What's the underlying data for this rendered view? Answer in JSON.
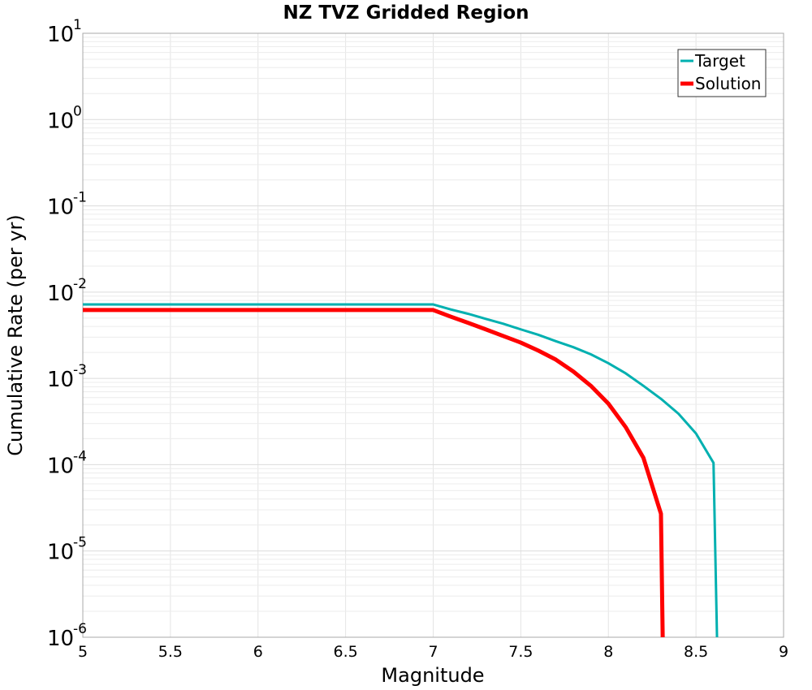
{
  "chart_data": {
    "type": "line",
    "title": "NZ TVZ Gridded Region",
    "xlabel": "Magnitude",
    "ylabel": "Cumulative Rate (per yr)",
    "xlim": [
      5,
      9
    ],
    "ylim": [
      1e-06,
      10
    ],
    "y_scale": "log",
    "grid": true,
    "legend_position": "top-right",
    "x_ticks": [
      "5",
      "5.5",
      "6",
      "6.5",
      "7",
      "7.5",
      "8",
      "8.5",
      "9"
    ],
    "y_ticks": [
      {
        "base": "10",
        "exp": "-6"
      },
      {
        "base": "10",
        "exp": "-5"
      },
      {
        "base": "10",
        "exp": "-4"
      },
      {
        "base": "10",
        "exp": "-3"
      },
      {
        "base": "10",
        "exp": "-2"
      },
      {
        "base": "10",
        "exp": "-1"
      },
      {
        "base": "10",
        "exp": "0"
      },
      {
        "base": "10",
        "exp": "1"
      }
    ],
    "series": [
      {
        "name": "Target",
        "color": "#00b0b0",
        "x": [
          5.0,
          7.0,
          7.1,
          7.2,
          7.3,
          7.4,
          7.5,
          7.6,
          7.7,
          7.8,
          7.9,
          8.0,
          8.1,
          8.2,
          8.3,
          8.4,
          8.5,
          8.6,
          8.62
        ],
        "y": [
          0.0072,
          0.0072,
          0.0063,
          0.0056,
          0.0049,
          0.0043,
          0.0037,
          0.0032,
          0.0027,
          0.0023,
          0.0019,
          0.0015,
          0.00114,
          0.00082,
          0.00058,
          0.00039,
          0.00023,
          0.000105,
          1e-06
        ]
      },
      {
        "name": "Solution",
        "color": "#ff0000",
        "x": [
          5.0,
          7.0,
          7.1,
          7.2,
          7.3,
          7.4,
          7.5,
          7.6,
          7.7,
          7.8,
          7.9,
          8.0,
          8.1,
          8.2,
          8.3,
          8.31
        ],
        "y": [
          0.0062,
          0.0062,
          0.0052,
          0.0044,
          0.0037,
          0.0031,
          0.0026,
          0.0021,
          0.00165,
          0.0012,
          0.00082,
          0.00051,
          0.00027,
          0.00012,
          2.7e-05,
          1e-06
        ]
      }
    ]
  }
}
